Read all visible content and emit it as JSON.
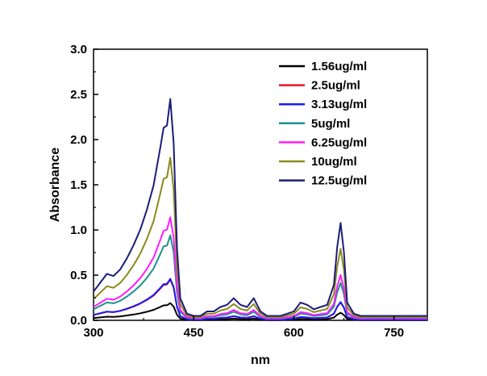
{
  "chart_data": {
    "type": "line",
    "xlabel": "nm",
    "ylabel": "Absorbance",
    "xlim": [
      300,
      800
    ],
    "ylim": [
      0,
      3.0
    ],
    "xticks": [
      "300",
      "450",
      "600",
      "750"
    ],
    "yticks": [
      "0.0",
      "0.5",
      "1.0",
      "1.5",
      "2.0",
      "2.5",
      "3.0"
    ],
    "legend_position": "top-right",
    "x": [
      300,
      310,
      320,
      330,
      340,
      350,
      360,
      370,
      380,
      390,
      400,
      405,
      410,
      415,
      420,
      425,
      430,
      440,
      450,
      460,
      470,
      480,
      490,
      500,
      510,
      520,
      530,
      540,
      550,
      560,
      570,
      580,
      590,
      600,
      610,
      620,
      630,
      640,
      650,
      660,
      665,
      670,
      675,
      680,
      690,
      700,
      750,
      800
    ],
    "shape": [
      0.13,
      0.17,
      0.21,
      0.2,
      0.23,
      0.28,
      0.34,
      0.41,
      0.5,
      0.61,
      0.78,
      0.87,
      0.88,
      1.0,
      0.8,
      0.33,
      0.1,
      0.03,
      0.02,
      0.02,
      0.04,
      0.04,
      0.06,
      0.07,
      0.1,
      0.07,
      0.06,
      0.1,
      0.04,
      0.02,
      0.02,
      0.02,
      0.03,
      0.04,
      0.08,
      0.07,
      0.05,
      0.06,
      0.07,
      0.16,
      0.33,
      0.44,
      0.31,
      0.08,
      0.03,
      0.02,
      0.02,
      0.02
    ],
    "series": [
      {
        "name": "1.56ug/ml",
        "peak": 0.19,
        "color": "#000000"
      },
      {
        "name": "2.5ug/ml",
        "peak": 0.45,
        "color": "#e8141c"
      },
      {
        "name": "3.13ug/ml",
        "peak": 0.46,
        "color": "#1c1cf0"
      },
      {
        "name": "5ug/ml",
        "peak": 0.94,
        "color": "#1e8f8f"
      },
      {
        "name": "6.25ug/ml",
        "peak": 1.14,
        "color": "#ff1cff"
      },
      {
        "name": "10ug/ml",
        "peak": 1.8,
        "color": "#8a8a1c"
      },
      {
        "name": "12.5ug/ml",
        "peak": 2.45,
        "color": "#1c1c7a"
      }
    ]
  }
}
